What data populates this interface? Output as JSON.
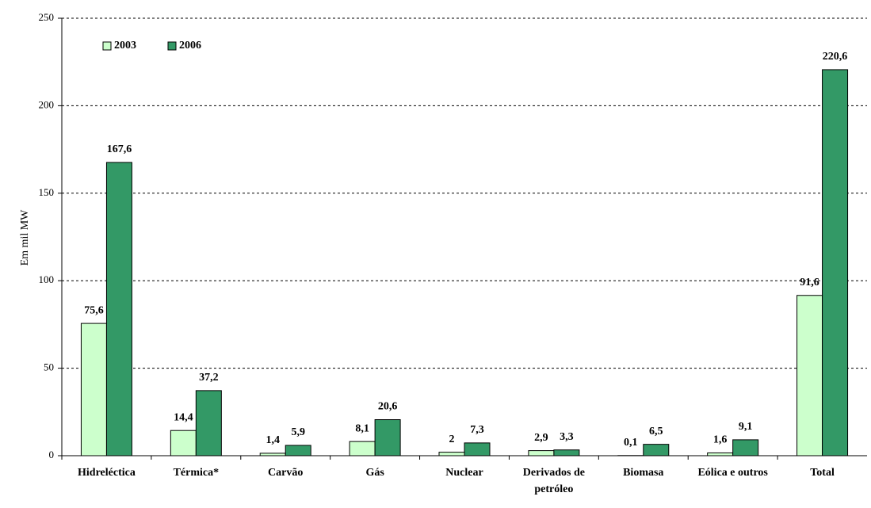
{
  "chart_data": {
    "type": "bar",
    "y_label": "Em mil MW",
    "categories": [
      "Hidreléctica",
      "Térmica*",
      "Carvão",
      "Gás",
      "Nuclear",
      "Derivados de petróleo",
      "Biomasa",
      "Eólica e outros",
      "Total"
    ],
    "series": [
      {
        "name": "2003",
        "color": "#ccffcc",
        "values": [
          75.6,
          14.4,
          1.4,
          8.1,
          2,
          2.9,
          0.1,
          1.6,
          91.6
        ],
        "value_labels": [
          "75,6",
          "14,4",
          "1,4",
          "8,1",
          "2",
          "2,9",
          "0,1",
          "1,6",
          "91,6"
        ]
      },
      {
        "name": "2006",
        "color": "#339966",
        "values": [
          167.6,
          37.2,
          5.9,
          20.6,
          7.3,
          3.3,
          6.5,
          9.1,
          220.6
        ],
        "value_labels": [
          "167,6",
          "37,2",
          "5,9",
          "20,6",
          "7,3",
          "3,3",
          "6,5",
          "9,1",
          "220,6"
        ]
      }
    ],
    "ylim": [
      0,
      250
    ],
    "yticks": [
      0,
      50,
      100,
      150,
      200,
      250
    ],
    "grid": true,
    "legend": "top-left"
  }
}
